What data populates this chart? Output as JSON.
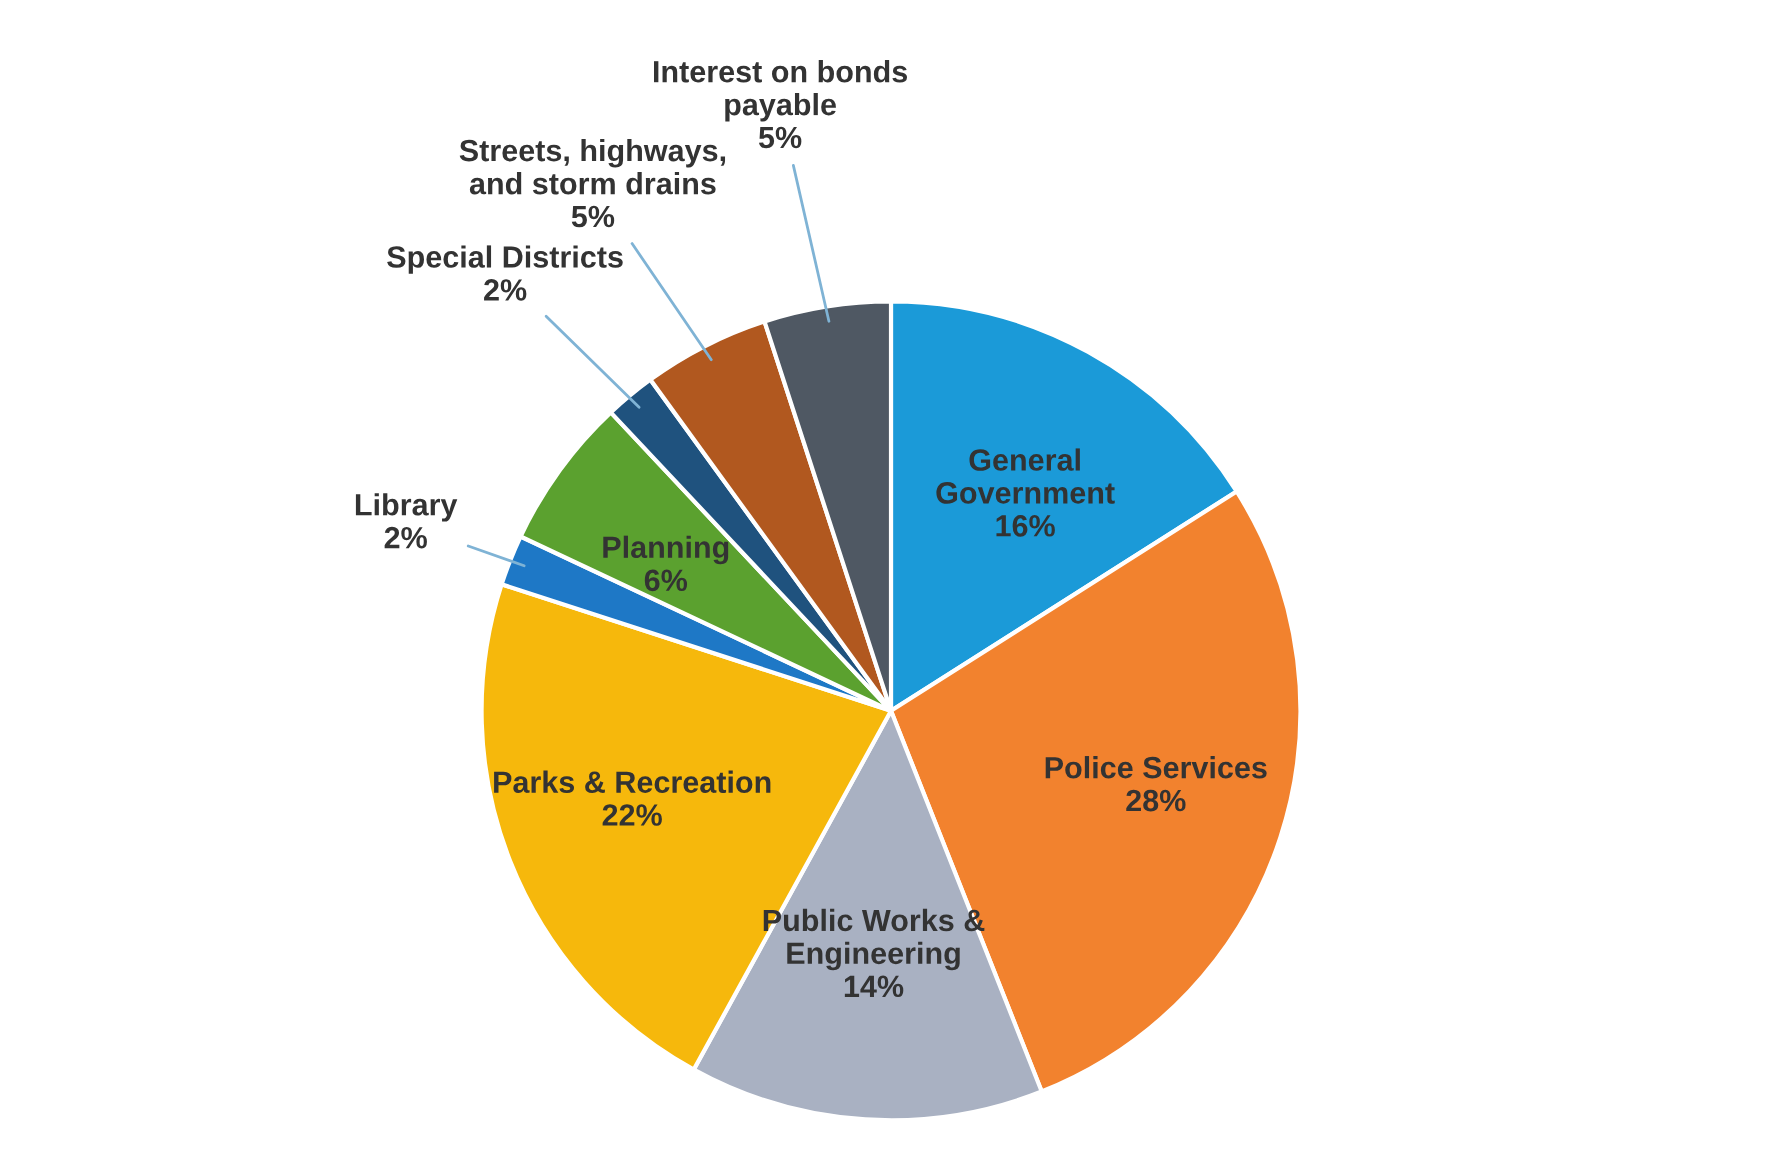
{
  "chart_data": {
    "type": "pie",
    "categories": [
      "General\nGovernment",
      "Police Services",
      "Public Works &\nEngineering",
      "Parks & Recreation",
      "Library",
      "Planning",
      "Special Districts",
      "Streets, highways,\nand storm drains",
      "Interest on bonds\npayable"
    ],
    "values": [
      16,
      28,
      14,
      22,
      2,
      6,
      2,
      5,
      5
    ],
    "value_labels": [
      "16%",
      "28%",
      "14%",
      "22%",
      "2%",
      "6%",
      "2%",
      "5%",
      "5%"
    ],
    "colors": [
      "#1b9ad8",
      "#f2822e",
      "#a9b1c2",
      "#f6b80c",
      "#1e78c6",
      "#5ba12f",
      "#1f527e",
      "#b1581f",
      "#4f5863"
    ],
    "legend": false
  }
}
